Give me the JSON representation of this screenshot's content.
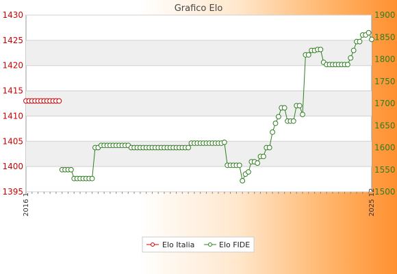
{
  "chart_data": {
    "type": "line",
    "title": "Grafico Elo",
    "legend_position": "bottom-center",
    "grid": true,
    "y_left": {
      "min": 1395,
      "max": 1430,
      "ticks": [
        1395,
        1400,
        1405,
        1410,
        1415,
        1420,
        1425,
        1430
      ],
      "color": "#cc0000"
    },
    "y_right": {
      "min": 1500,
      "max": 1900,
      "ticks": [
        1500,
        1550,
        1600,
        1650,
        1700,
        1750,
        1800,
        1850,
        1900
      ],
      "color": "#2e7d1e"
    },
    "x_label_first": "2016 1",
    "x_label_last": "2025 12",
    "series": [
      {
        "name": "Elo Italia",
        "axis": "left",
        "color": "#cc0000",
        "values": [
          1413,
          1413,
          1413,
          1413,
          1413,
          1413,
          1413,
          1413,
          1413,
          1413,
          1413,
          1413
        ]
      },
      {
        "name": "Elo FIDE",
        "axis": "right",
        "color": "#2e7d1e",
        "values": [
          1550,
          1550,
          1550,
          1550,
          1530,
          1530,
          1530,
          1530,
          1530,
          1530,
          1530,
          1600,
          1600,
          1605,
          1605,
          1605,
          1605,
          1605,
          1605,
          1605,
          1605,
          1605,
          1605,
          1600,
          1600,
          1600,
          1600,
          1600,
          1600,
          1600,
          1600,
          1600,
          1600,
          1600,
          1600,
          1600,
          1600,
          1600,
          1600,
          1600,
          1600,
          1600,
          1600,
          1610,
          1610,
          1610,
          1610,
          1610,
          1610,
          1610,
          1610,
          1610,
          1610,
          1610,
          1612,
          1560,
          1560,
          1560,
          1560,
          1560,
          1525,
          1540,
          1545,
          1568,
          1568,
          1565,
          1580,
          1580,
          1600,
          1600,
          1635,
          1655,
          1670,
          1690,
          1690,
          1660,
          1660,
          1660,
          1695,
          1695,
          1675,
          1810,
          1810,
          1820,
          1820,
          1822,
          1822,
          1793,
          1788,
          1788,
          1788,
          1788,
          1788,
          1788,
          1788,
          1788,
          1803,
          1820,
          1840,
          1840,
          1855,
          1855,
          1860,
          1845
        ]
      }
    ]
  }
}
